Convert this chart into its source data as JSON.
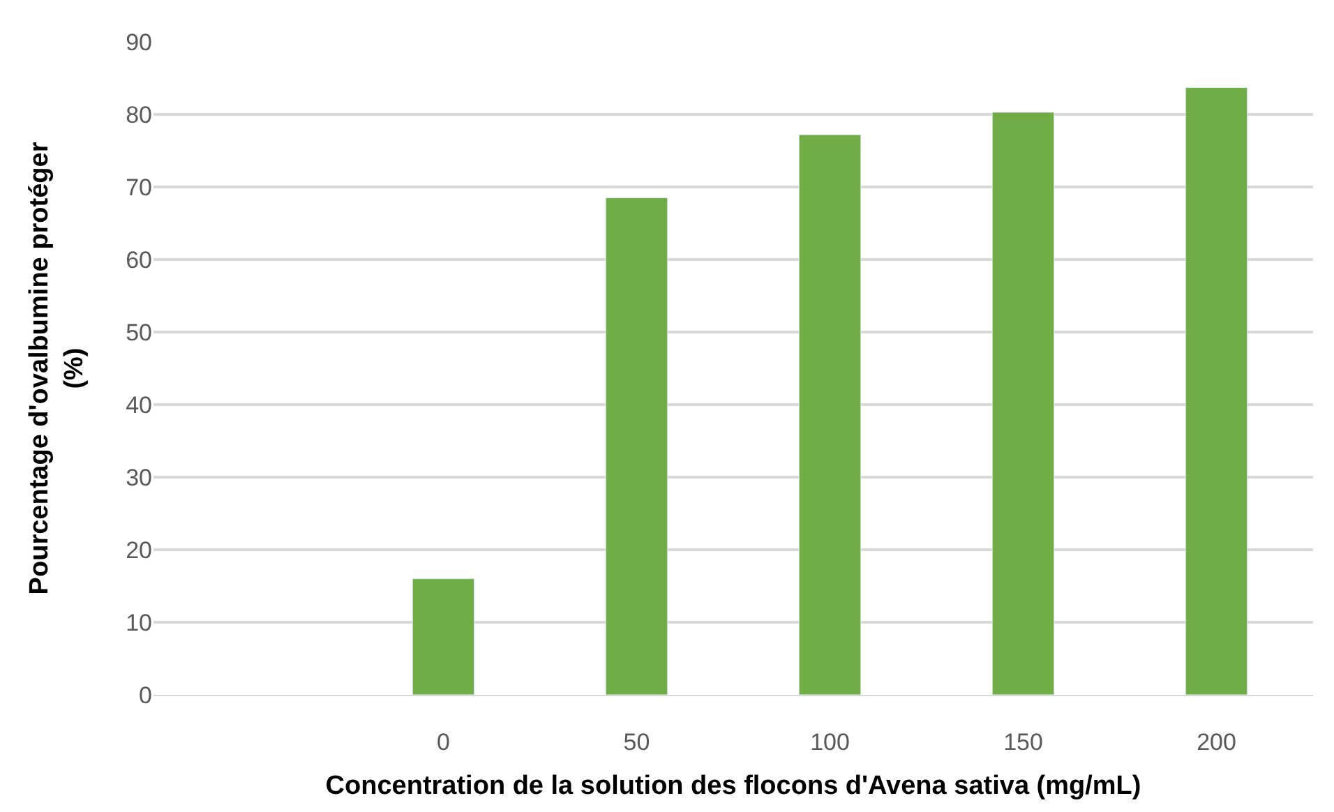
{
  "chart_data": {
    "type": "bar",
    "categories": [
      null,
      "0",
      "50",
      "100",
      "150",
      "200"
    ],
    "values": [
      null,
      16,
      68.5,
      77.2,
      80.3,
      83.7
    ],
    "color": "#70ad47",
    "xlabel": "Concentration de la solution des flocons d'Avena sativa (mg/mL)",
    "ylabel": "Pourcentage d'ovalbumine protéger (%)",
    "ylim": [
      0,
      90
    ],
    "yticks": [
      0,
      10,
      20,
      30,
      40,
      50,
      60,
      70,
      80,
      90
    ],
    "grid": "y",
    "legend": false
  }
}
